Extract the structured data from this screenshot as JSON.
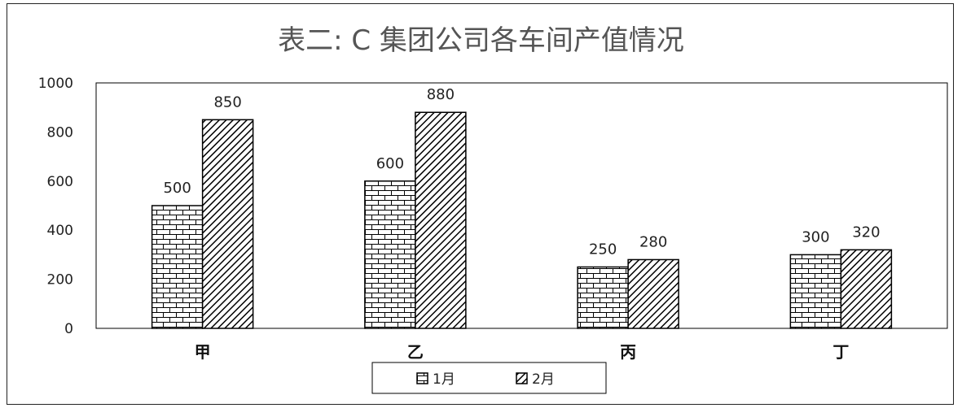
{
  "chart_data": {
    "type": "bar",
    "title": "表二: C 集团公司各车间产值情况",
    "categories": [
      "甲",
      "乙",
      "丙",
      "丁"
    ],
    "series": [
      {
        "name": "1月",
        "values": [
          500,
          600,
          250,
          300
        ],
        "pattern": "brick"
      },
      {
        "name": "2月",
        "values": [
          850,
          880,
          280,
          320
        ],
        "pattern": "diagonal"
      }
    ],
    "ylim": [
      0,
      1000
    ],
    "yticks": [
      0,
      200,
      400,
      600,
      800,
      1000
    ],
    "grid": false,
    "legend_position": "bottom",
    "colors": {
      "bar_fill": "#ffffff",
      "bar_stroke": "#000000",
      "text": "#222222",
      "title": "#555555"
    }
  }
}
